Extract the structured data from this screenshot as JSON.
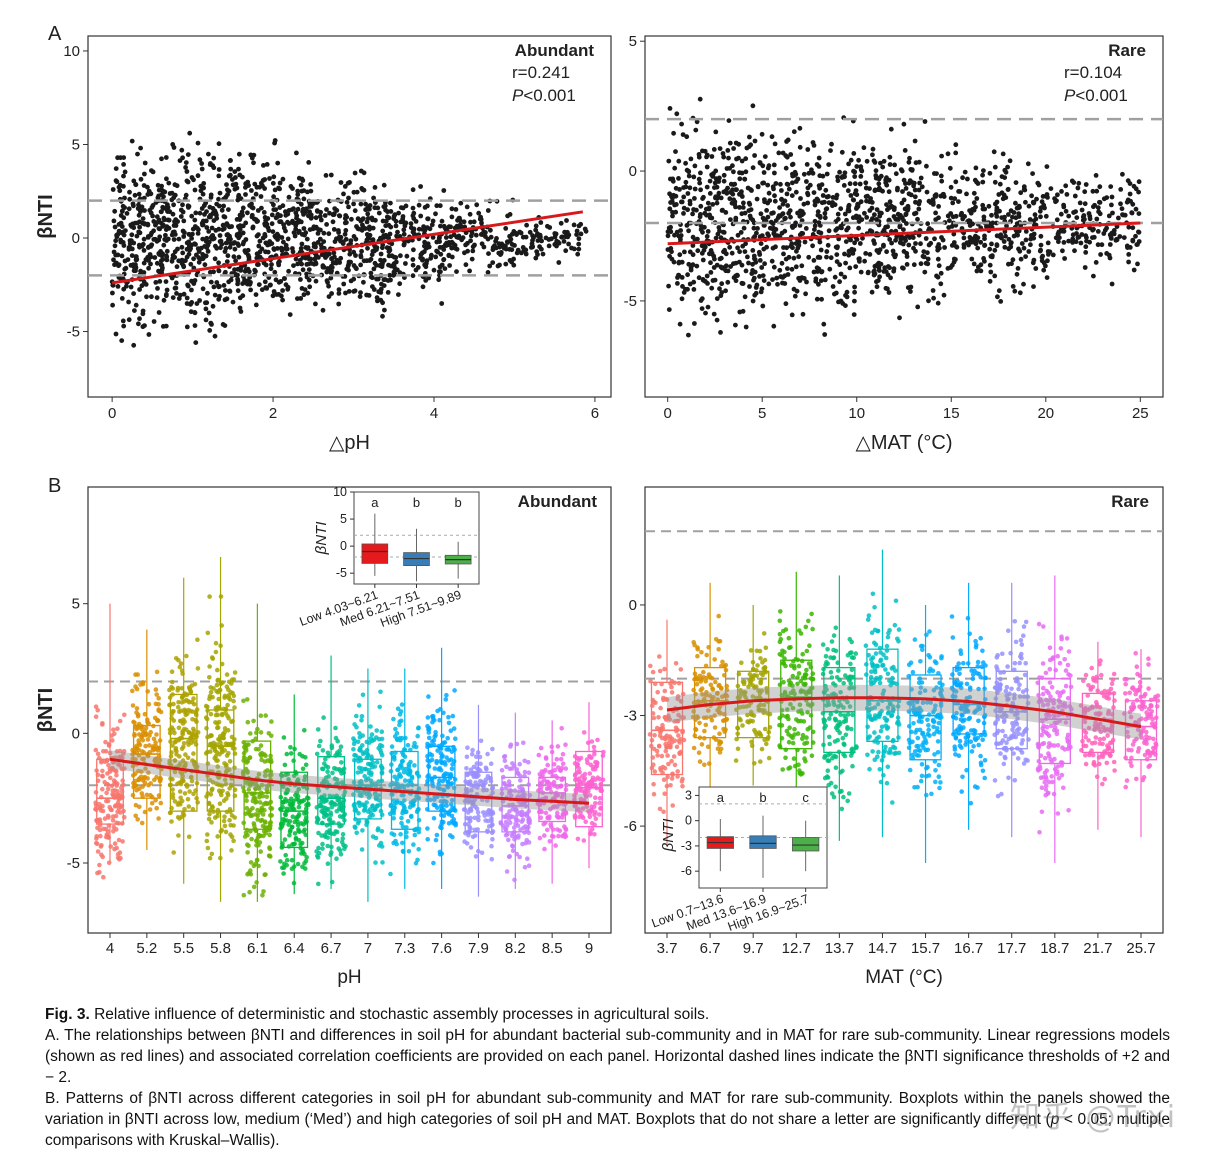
{
  "chart_data": [
    {
      "id": "A-left",
      "type": "scatter",
      "panel_label": "A",
      "title": "Abundant",
      "stat_r": "r=0.241",
      "stat_p_italic": "P",
      "stat_p_rest": "<0.001",
      "xlabel": "△pH",
      "ylabel": "βNTI",
      "xlim": [
        -0.3,
        6.2
      ],
      "ylim": [
        -8.5,
        10.8
      ],
      "xticks": [
        0,
        2,
        4,
        6
      ],
      "yticks": [
        -5,
        0,
        5,
        10
      ],
      "thresholds": [
        2,
        -2
      ],
      "regression": {
        "x": [
          0,
          5.85
        ],
        "y": [
          -2.4,
          1.4
        ],
        "color": "#d7191c"
      },
      "point_cloud": {
        "color": "#1a1a1a",
        "description_bins": [
          {
            "x0": 0.0,
            "x1": 0.5,
            "ymin": -6.8,
            "ymax": 6.5
          },
          {
            "x0": 0.5,
            "x1": 1.5,
            "ymin": -6.5,
            "ymax": 6.5
          },
          {
            "x0": 1.5,
            "x1": 2.5,
            "ymin": -6.0,
            "ymax": 6.0
          },
          {
            "x0": 2.5,
            "x1": 3.5,
            "ymin": -5.3,
            "ymax": 4.8
          },
          {
            "x0": 3.5,
            "x1": 4.2,
            "ymin": -4.0,
            "ymax": 3.5
          },
          {
            "x0": 4.2,
            "x1": 5.0,
            "ymin": -2.5,
            "ymax": 2.5
          },
          {
            "x0": 5.0,
            "x1": 5.9,
            "ymin": -1.5,
            "ymax": 1.5
          }
        ]
      }
    },
    {
      "id": "A-right",
      "type": "scatter",
      "title": "Rare",
      "stat_r": "r=0.104",
      "stat_p_italic": "P",
      "stat_p_rest": "<0.001",
      "xlabel": "△MAT (°C)",
      "ylabel": "",
      "xlim": [
        -1.2,
        26.2
      ],
      "ylim": [
        -8.7,
        5.2
      ],
      "xticks": [
        0,
        5,
        10,
        15,
        20,
        25
      ],
      "yticks": [
        -5,
        0,
        5
      ],
      "thresholds": [
        2,
        -2
      ],
      "regression": {
        "x": [
          0,
          25
        ],
        "y": [
          -2.8,
          -2.0
        ],
        "color": "#d7191c"
      },
      "point_cloud": {
        "color": "#1a1a1a",
        "description_bins": [
          {
            "x0": 0,
            "x1": 5,
            "ymin": -7.5,
            "ymax": 3.5
          },
          {
            "x0": 5,
            "x1": 10,
            "ymin": -7.0,
            "ymax": 3.0
          },
          {
            "x0": 10,
            "x1": 15,
            "ymin": -6.5,
            "ymax": 2.5
          },
          {
            "x0": 15,
            "x1": 20,
            "ymin": -5.5,
            "ymax": 1.5
          },
          {
            "x0": 20,
            "x1": 25,
            "ymin": -4.5,
            "ymax": 0.5
          }
        ]
      }
    },
    {
      "id": "B-left",
      "type": "box",
      "panel_label": "B",
      "title": "Abundant",
      "xlabel": "pH",
      "ylabel": "βNTI",
      "ylim": [
        -7.7,
        9.5
      ],
      "yticks": [
        -5,
        0,
        5
      ],
      "threshold": 2,
      "threshold_secondary": -2,
      "categories": [
        "4",
        "5.2",
        "5.5",
        "5.8",
        "6.1",
        "6.4",
        "6.7",
        "7",
        "7.3",
        "7.6",
        "7.9",
        "8.2",
        "8.5",
        "9"
      ],
      "colors": [
        "#f8766d",
        "#db8e00",
        "#aea200",
        "#a3a500",
        "#6bb100",
        "#00ba38",
        "#00c087",
        "#00bfc4",
        "#00b8e5",
        "#00a9ff",
        "#9b8fff",
        "#c77cff",
        "#ef67eb",
        "#fd61d1"
      ],
      "boxes": [
        {
          "q1": -3.5,
          "median": -2.5,
          "q3": -1.0,
          "lo": -5.0,
          "hi": 5.0
        },
        {
          "q1": -2.5,
          "median": -0.8,
          "q3": 0.3,
          "lo": -4.5,
          "hi": 4.0
        },
        {
          "q1": -3.0,
          "median": -0.2,
          "q3": 1.5,
          "lo": -5.8,
          "hi": 6.0
        },
        {
          "q1": -3.0,
          "median": -0.5,
          "q3": 0.9,
          "lo": -6.5,
          "hi": 6.8
        },
        {
          "q1": -3.7,
          "median": -2.3,
          "q3": -0.3,
          "lo": -6.5,
          "hi": 5.0
        },
        {
          "q1": -4.4,
          "median": -3.0,
          "q3": -1.5,
          "lo": -6.2,
          "hi": 1.5
        },
        {
          "q1": -3.5,
          "median": -2.5,
          "q3": -0.9,
          "lo": -6.0,
          "hi": 3.0
        },
        {
          "q1": -3.3,
          "median": -2.0,
          "q3": -1.0,
          "lo": -6.5,
          "hi": 2.5
        },
        {
          "q1": -3.7,
          "median": -2.0,
          "q3": -0.7,
          "lo": -6.0,
          "hi": 2.5
        },
        {
          "q1": -3.0,
          "median": -1.7,
          "q3": -0.5,
          "lo": -6.0,
          "hi": 3.3
        },
        {
          "q1": -3.8,
          "median": -2.5,
          "q3": -1.5,
          "lo": -6.3,
          "hi": 1.1
        },
        {
          "q1": -3.8,
          "median": -2.8,
          "q3": -1.7,
          "lo": -6.0,
          "hi": 0.8
        },
        {
          "q1": -3.4,
          "median": -2.3,
          "q3": -1.7,
          "lo": -5.8,
          "hi": 0.5
        },
        {
          "q1": -3.6,
          "median": -2.1,
          "q3": -0.7,
          "lo": -5.2,
          "hi": 1.2
        }
      ],
      "smooth": {
        "y": [
          -1.0,
          -1.2,
          -1.4,
          -1.6,
          -1.8,
          -1.95,
          -2.05,
          -2.15,
          -2.25,
          -2.35,
          -2.45,
          -2.55,
          -2.62,
          -2.7
        ],
        "color": "#d7191c"
      },
      "inset": {
        "ylabel": "βNTI",
        "ylim": [
          -7,
          10
        ],
        "yticks": [
          -5,
          0,
          5,
          10
        ],
        "categories": [
          "Low 4.03~6.21",
          "Med 6.21~7.51",
          "High 7.51~9.89"
        ],
        "letters": [
          "a",
          "b",
          "b"
        ],
        "colors": [
          "#e41a1c",
          "#377eb8",
          "#4daf4a"
        ],
        "boxes": [
          {
            "q1": -3.2,
            "median": -1.0,
            "q3": 0.4,
            "lo": -5.5,
            "hi": 6.0
          },
          {
            "q1": -3.6,
            "median": -2.3,
            "q3": -1.2,
            "lo": -6.5,
            "hi": 3.2
          },
          {
            "q1": -3.3,
            "median": -2.5,
            "q3": -1.7,
            "lo": -6.0,
            "hi": 0.8
          }
        ]
      }
    },
    {
      "id": "B-right",
      "type": "box",
      "title": "Rare",
      "xlabel": "MAT (°C)",
      "ylabel": "",
      "ylim": [
        -8.9,
        3.2
      ],
      "yticks": [
        -6,
        -3,
        0
      ],
      "threshold": 2,
      "threshold_secondary": -2,
      "categories": [
        "3.7",
        "6.7",
        "9.7",
        "12.7",
        "13.7",
        "14.7",
        "15.7",
        "16.7",
        "17.7",
        "18.7",
        "21.7",
        "25.7"
      ],
      "colors": [
        "#f8766d",
        "#d89000",
        "#a3a500",
        "#39b600",
        "#00bf7d",
        "#00bfc4",
        "#00b0f6",
        "#00a8ff",
        "#9590ff",
        "#e76bf3",
        "#ff62bc",
        "#fa63d0"
      ],
      "boxes": [
        {
          "q1": -4.6,
          "median": -3.4,
          "q3": -2.1,
          "lo": -6.5,
          "hi": -0.4
        },
        {
          "q1": -3.6,
          "median": -2.6,
          "q3": -1.7,
          "lo": -5.1,
          "hi": 0.6
        },
        {
          "q1": -3.6,
          "median": -2.6,
          "q3": -1.8,
          "lo": -4.9,
          "hi": 0.0
        },
        {
          "q1": -3.9,
          "median": -2.5,
          "q3": -1.5,
          "lo": -6.5,
          "hi": 0.9
        },
        {
          "q1": -4.0,
          "median": -2.9,
          "q3": -1.7,
          "lo": -6.4,
          "hi": 0.8
        },
        {
          "q1": -3.7,
          "median": -2.6,
          "q3": -1.2,
          "lo": -6.3,
          "hi": 1.5
        },
        {
          "q1": -4.2,
          "median": -3.0,
          "q3": -1.9,
          "lo": -7.0,
          "hi": 0.0
        },
        {
          "q1": -3.5,
          "median": -2.7,
          "q3": -1.7,
          "lo": -6.1,
          "hi": 0.6
        },
        {
          "q1": -3.9,
          "median": -2.9,
          "q3": -1.8,
          "lo": -6.3,
          "hi": 0.6
        },
        {
          "q1": -4.3,
          "median": -3.1,
          "q3": -2.0,
          "lo": -7.0,
          "hi": 0.8
        },
        {
          "q1": -4.0,
          "median": -3.1,
          "q3": -2.4,
          "lo": -6.1,
          "hi": -1.0
        },
        {
          "q1": -4.2,
          "median": -3.3,
          "q3": -2.6,
          "lo": -6.3,
          "hi": -1.2
        }
      ],
      "smooth": {
        "y": [
          -2.85,
          -2.7,
          -2.6,
          -2.55,
          -2.52,
          -2.52,
          -2.55,
          -2.62,
          -2.75,
          -2.9,
          -3.1,
          -3.3
        ],
        "color": "#d7191c"
      },
      "inset": {
        "ylabel": "βNTI",
        "ylim": [
          -8,
          4
        ],
        "yticks": [
          -6,
          -3,
          0,
          3
        ],
        "categories": [
          "Low 0.7~13.6",
          "Med 13.6~16.9",
          "High 16.9~25.7"
        ],
        "letters": [
          "a",
          "b",
          "c"
        ],
        "colors": [
          "#e41a1c",
          "#377eb8",
          "#4daf4a"
        ],
        "boxes": [
          {
            "q1": -3.3,
            "median": -2.6,
            "q3": -1.9,
            "lo": -6.0,
            "hi": 0.2
          },
          {
            "q1": -3.3,
            "median": -2.7,
            "q3": -1.8,
            "lo": -6.8,
            "hi": 0.6
          },
          {
            "q1": -3.6,
            "median": -2.9,
            "q3": -2.0,
            "lo": -6.0,
            "hi": 0.0
          }
        ]
      }
    }
  ],
  "caption": {
    "fig_label": "Fig. 3.",
    "title": " Relative influence of deterministic and stochastic assembly processes in agricultural soils.",
    "paragraph_a": "A. The relationships between βNTI and differences in soil pH for abundant bacterial sub-community and in MAT for rare sub-community. Linear regressions models (shown as red lines) and associated correlation coefficients are provided on each panel. Horizontal dashed lines indicate the βNTI significance thresholds of +2 and − 2.",
    "paragraph_b_before": "B. Patterns of βNTI across different categories in soil pH for abundant sub-community and MAT for rare sub-community. Boxplots within the panels showed the variation in βNTI across low, medium (‘Med’) and high categories of soil pH and MAT. Boxplots that do not share a letter are significantly different (",
    "paragraph_b_italic": "p",
    "paragraph_b_after": " < 0.05; multiple comparisons with Kruskal–Wallis)."
  },
  "watermark": "知乎 @Trxi"
}
